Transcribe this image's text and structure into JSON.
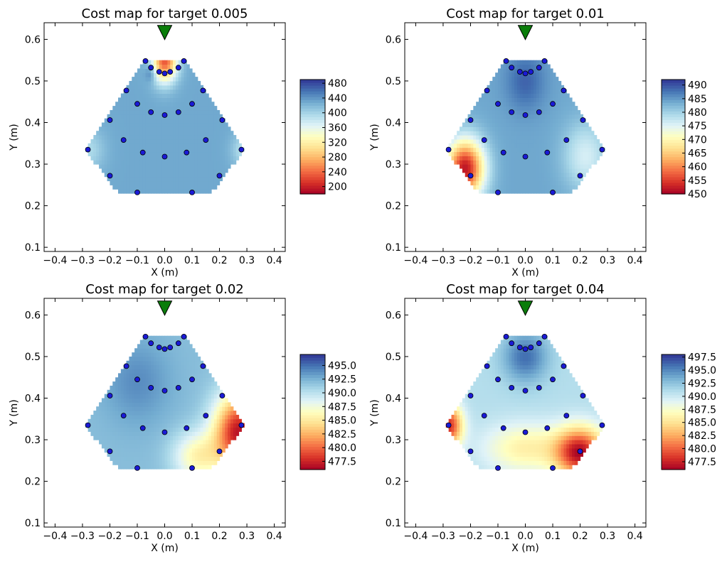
{
  "chart_data": [
    {
      "type": "heatmap",
      "title": "Cost map for target 0.005",
      "xlabel": "X (m)",
      "ylabel": "Y (m)",
      "xlim": [
        -0.44,
        0.44
      ],
      "ylim": [
        0.09,
        0.64
      ],
      "xticks": [
        "−0.4",
        "−0.3",
        "−0.2",
        "−0.1",
        "0.0",
        "0.1",
        "0.2",
        "0.3",
        "0.4"
      ],
      "yticks": [
        "0.1",
        "0.2",
        "0.3",
        "0.4",
        "0.5",
        "0.6"
      ],
      "colorbar": {
        "min": 180,
        "max": 490,
        "ticks": [
          "200",
          "240",
          "280",
          "320",
          "360",
          "400",
          "440",
          "480"
        ]
      },
      "source": {
        "x": 0.0,
        "y": 0.62,
        "color": "#0a7d0a"
      },
      "points": [
        [
          -0.07,
          0.548
        ],
        [
          0.07,
          0.548
        ],
        [
          -0.05,
          0.532
        ],
        [
          0.05,
          0.532
        ],
        [
          -0.02,
          0.522
        ],
        [
          0.02,
          0.522
        ],
        [
          0.0,
          0.518
        ],
        [
          -0.14,
          0.477
        ],
        [
          0.14,
          0.477
        ],
        [
          -0.1,
          0.445
        ],
        [
          0.1,
          0.445
        ],
        [
          -0.05,
          0.425
        ],
        [
          0.05,
          0.425
        ],
        [
          0.0,
          0.418
        ],
        [
          -0.2,
          0.406
        ],
        [
          0.21,
          0.406
        ],
        [
          -0.15,
          0.358
        ],
        [
          0.15,
          0.358
        ],
        [
          -0.28,
          0.335
        ],
        [
          0.28,
          0.335
        ],
        [
          -0.08,
          0.328
        ],
        [
          0.08,
          0.328
        ],
        [
          0.0,
          0.318
        ],
        [
          -0.2,
          0.272
        ],
        [
          0.2,
          0.272
        ],
        [
          -0.1,
          0.232
        ],
        [
          0.1,
          0.232
        ]
      ],
      "hotspots": [
        [
          0.0,
          0.55,
          0.045,
          0.05,
          230
        ],
        [
          -0.28,
          0.335,
          0.06,
          0.05,
          395
        ],
        [
          0.3,
          0.335,
          0.05,
          0.04,
          380
        ],
        [
          -0.05,
          0.52,
          0.02,
          0.02,
          470
        ]
      ],
      "base": 430
    },
    {
      "type": "heatmap",
      "title": "Cost map for target 0.01",
      "xlabel": "X (m)",
      "ylabel": "Y (m)",
      "xlim": [
        -0.44,
        0.44
      ],
      "ylim": [
        0.09,
        0.64
      ],
      "xticks": [
        "−0.4",
        "−0.3",
        "−0.2",
        "−0.1",
        "0.0",
        "0.1",
        "0.2",
        "0.3",
        "0.4"
      ],
      "yticks": [
        "0.1",
        "0.2",
        "0.3",
        "0.4",
        "0.5",
        "0.6"
      ],
      "colorbar": {
        "min": 450,
        "max": 492,
        "ticks": [
          "450",
          "455",
          "460",
          "465",
          "470",
          "475",
          "480",
          "485",
          "490"
        ]
      },
      "source": {
        "x": 0.0,
        "y": 0.62,
        "color": "#0a7d0a"
      },
      "points": [
        [
          -0.07,
          0.548
        ],
        [
          0.07,
          0.548
        ],
        [
          -0.05,
          0.532
        ],
        [
          0.05,
          0.532
        ],
        [
          -0.02,
          0.522
        ],
        [
          0.02,
          0.522
        ],
        [
          0.0,
          0.518
        ],
        [
          -0.14,
          0.477
        ],
        [
          0.14,
          0.477
        ],
        [
          -0.1,
          0.445
        ],
        [
          0.1,
          0.445
        ],
        [
          -0.05,
          0.425
        ],
        [
          0.05,
          0.425
        ],
        [
          0.0,
          0.418
        ],
        [
          -0.2,
          0.406
        ],
        [
          0.21,
          0.406
        ],
        [
          -0.15,
          0.358
        ],
        [
          0.15,
          0.358
        ],
        [
          -0.28,
          0.335
        ],
        [
          0.28,
          0.335
        ],
        [
          -0.08,
          0.328
        ],
        [
          0.08,
          0.328
        ],
        [
          0.0,
          0.318
        ],
        [
          -0.2,
          0.272
        ],
        [
          0.2,
          0.272
        ],
        [
          -0.1,
          0.232
        ],
        [
          0.1,
          0.232
        ]
      ],
      "hotspots": [
        [
          -0.22,
          0.29,
          0.07,
          0.07,
          452
        ],
        [
          0.22,
          0.32,
          0.08,
          0.08,
          476
        ],
        [
          0.0,
          0.5,
          0.07,
          0.07,
          489
        ]
      ],
      "base": 484
    },
    {
      "type": "heatmap",
      "title": "Cost map for target 0.02",
      "xlabel": "X (m)",
      "ylabel": "Y (m)",
      "xlim": [
        -0.44,
        0.44
      ],
      "ylim": [
        0.09,
        0.64
      ],
      "xticks": [
        "−0.4",
        "−0.3",
        "−0.2",
        "−0.1",
        "0.0",
        "0.1",
        "0.2",
        "0.3",
        "0.4"
      ],
      "yticks": [
        "0.1",
        "0.2",
        "0.3",
        "0.4",
        "0.5",
        "0.6"
      ],
      "colorbar": {
        "min": 476,
        "max": 497,
        "ticks": [
          "477.5",
          "480.0",
          "482.5",
          "485.0",
          "487.5",
          "490.0",
          "492.5",
          "495.0"
        ]
      },
      "source": {
        "x": 0.0,
        "y": 0.62,
        "color": "#0a7d0a"
      },
      "points": [
        [
          -0.07,
          0.548
        ],
        [
          0.07,
          0.548
        ],
        [
          -0.05,
          0.532
        ],
        [
          0.05,
          0.532
        ],
        [
          -0.02,
          0.522
        ],
        [
          0.02,
          0.522
        ],
        [
          0.0,
          0.518
        ],
        [
          -0.14,
          0.477
        ],
        [
          0.14,
          0.477
        ],
        [
          -0.1,
          0.445
        ],
        [
          0.1,
          0.445
        ],
        [
          -0.05,
          0.425
        ],
        [
          0.05,
          0.425
        ],
        [
          0.0,
          0.418
        ],
        [
          -0.2,
          0.406
        ],
        [
          0.21,
          0.406
        ],
        [
          -0.15,
          0.358
        ],
        [
          0.15,
          0.358
        ],
        [
          -0.28,
          0.335
        ],
        [
          0.28,
          0.335
        ],
        [
          -0.08,
          0.328
        ],
        [
          0.08,
          0.328
        ],
        [
          0.0,
          0.318
        ],
        [
          -0.2,
          0.272
        ],
        [
          0.2,
          0.272
        ],
        [
          -0.1,
          0.232
        ],
        [
          0.1,
          0.232
        ]
      ],
      "hotspots": [
        [
          0.27,
          0.32,
          0.09,
          0.09,
          477
        ],
        [
          0.12,
          0.26,
          0.09,
          0.06,
          486
        ],
        [
          -0.1,
          0.44,
          0.12,
          0.1,
          494
        ]
      ],
      "base": 492
    },
    {
      "type": "heatmap",
      "title": "Cost map for target 0.04",
      "xlabel": "X (m)",
      "ylabel": "Y (m)",
      "xlim": [
        -0.44,
        0.44
      ],
      "ylim": [
        0.09,
        0.64
      ],
      "xticks": [
        "−0.4",
        "−0.3",
        "−0.2",
        "−0.1",
        "0.0",
        "0.1",
        "0.2",
        "0.3",
        "0.4"
      ],
      "yticks": [
        "0.1",
        "0.2",
        "0.3",
        "0.4",
        "0.5",
        "0.6"
      ],
      "colorbar": {
        "min": 476,
        "max": 498,
        "ticks": [
          "477.5",
          "480.0",
          "482.5",
          "485.0",
          "487.5",
          "490.0",
          "492.5",
          "495.0",
          "497.5"
        ]
      },
      "source": {
        "x": 0.0,
        "y": 0.62,
        "color": "#0a7d0a"
      },
      "points": [
        [
          -0.07,
          0.548
        ],
        [
          0.07,
          0.548
        ],
        [
          -0.05,
          0.532
        ],
        [
          0.05,
          0.532
        ],
        [
          -0.02,
          0.522
        ],
        [
          0.02,
          0.522
        ],
        [
          0.0,
          0.518
        ],
        [
          -0.14,
          0.477
        ],
        [
          0.14,
          0.477
        ],
        [
          -0.1,
          0.445
        ],
        [
          0.1,
          0.445
        ],
        [
          -0.05,
          0.425
        ],
        [
          0.05,
          0.425
        ],
        [
          0.0,
          0.418
        ],
        [
          -0.2,
          0.406
        ],
        [
          0.21,
          0.406
        ],
        [
          -0.15,
          0.358
        ],
        [
          0.15,
          0.358
        ],
        [
          -0.28,
          0.335
        ],
        [
          0.28,
          0.335
        ],
        [
          -0.08,
          0.328
        ],
        [
          0.08,
          0.328
        ],
        [
          0.0,
          0.318
        ],
        [
          -0.2,
          0.272
        ],
        [
          0.2,
          0.272
        ],
        [
          -0.1,
          0.232
        ],
        [
          0.1,
          0.232
        ]
      ],
      "hotspots": [
        [
          0.2,
          0.27,
          0.09,
          0.06,
          477
        ],
        [
          -0.28,
          0.335,
          0.05,
          0.05,
          478
        ],
        [
          0.0,
          0.28,
          0.15,
          0.06,
          486
        ],
        [
          0.0,
          0.5,
          0.08,
          0.06,
          496
        ]
      ],
      "base": 491
    }
  ]
}
